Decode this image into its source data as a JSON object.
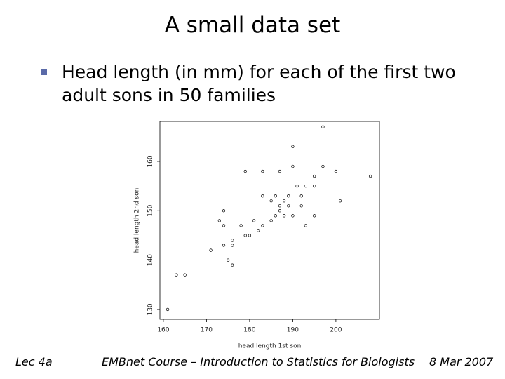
{
  "title": "A small data set",
  "bullet": "Head length (in mm) for each of the first two adult sons in 50 families",
  "footer": {
    "left": "Lec 4a",
    "center": "EMBnet Course – Introduction to Statistics for Biologists",
    "right": "8 Mar 2007"
  },
  "chart_data": {
    "type": "scatter",
    "xlabel": "head length 1st son",
    "ylabel": "head length 2nd son",
    "xlim": [
      159.2,
      210.1
    ],
    "ylim": [
      128,
      168.1
    ],
    "xticks": [
      160,
      170,
      180,
      190,
      200
    ],
    "yticks": [
      130,
      140,
      150,
      160
    ],
    "color": "#000000",
    "x": [
      197,
      190,
      179,
      183,
      187,
      190,
      197,
      200,
      208,
      195,
      191,
      193,
      195,
      183,
      186,
      189,
      192,
      185,
      188,
      201,
      187,
      189,
      192,
      174,
      187,
      186,
      188,
      190,
      195,
      185,
      173,
      181,
      174,
      178,
      183,
      193,
      182,
      180,
      179,
      176,
      174,
      176,
      171,
      175,
      176,
      163,
      165,
      161
    ],
    "y": [
      167,
      163,
      158,
      158,
      158,
      159,
      159,
      158,
      157,
      157,
      155,
      155,
      155,
      153,
      153,
      153,
      153,
      152,
      152,
      152,
      151,
      151,
      151,
      150,
      150,
      149,
      149,
      149,
      149,
      148,
      148,
      148,
      147,
      147,
      147,
      147,
      146,
      145,
      145,
      144,
      143,
      143,
      142,
      140,
      139,
      137,
      137,
      130
    ]
  }
}
